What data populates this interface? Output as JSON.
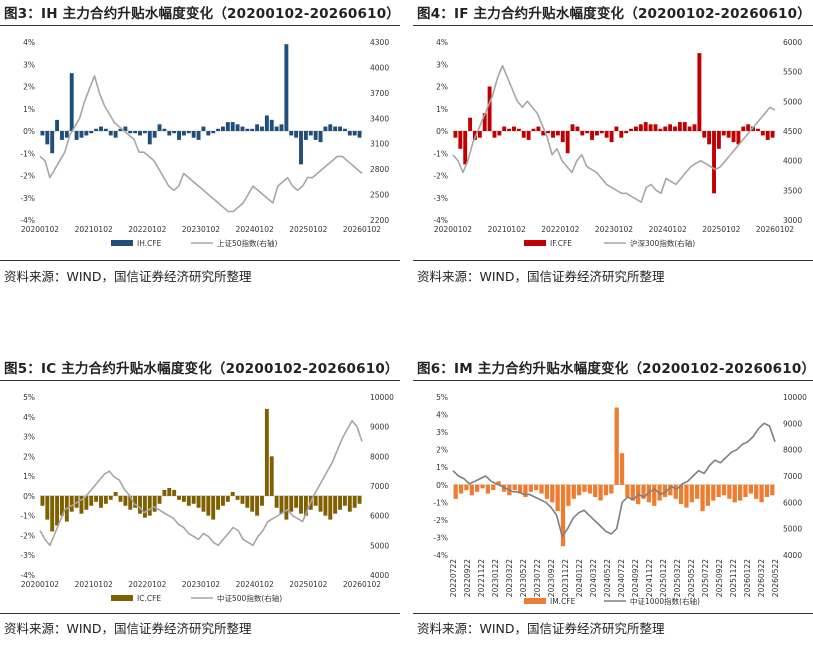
{
  "panels": [
    {
      "title": "图3：IH 主力合约升贴水幅度变化（20200102-20260610）",
      "source": "资料来源：WIND，国信证券经济研究所整理",
      "chart_data": {
        "type": "bar",
        "x_ticks": [
          "20200102",
          "20210102",
          "20220102",
          "20230102",
          "20240102",
          "20250102",
          "20260102"
        ],
        "y_left_ticks": [
          "4%",
          "3%",
          "2%",
          "1%",
          "0%",
          "-1%",
          "-2%",
          "-3%",
          "-4%"
        ],
        "y_left_range": [
          -4,
          4
        ],
        "y_right_ticks": [
          "4300",
          "4000",
          "3700",
          "3400",
          "3100",
          "2800",
          "2500",
          "2200"
        ],
        "y_right_range": [
          2200,
          4300
        ],
        "series": [
          {
            "name": "IH.CFE",
            "kind": "bar",
            "axis": "left",
            "color": "#1f4e79",
            "values": [
              -0.2,
              -0.6,
              -1.0,
              0.5,
              -0.4,
              -0.3,
              2.6,
              -0.4,
              -0.3,
              -0.2,
              -0.1,
              0.1,
              0.2,
              0.1,
              -0.2,
              -0.3,
              0.1,
              0.2,
              -0.1,
              -0.1,
              -0.2,
              -0.1,
              -0.6,
              -0.3,
              0.3,
              0.1,
              -0.2,
              -0.1,
              -0.4,
              -0.2,
              -0.1,
              -0.3,
              -0.4,
              0.2,
              -0.2,
              -0.1,
              0.1,
              0.2,
              0.4,
              0.4,
              0.3,
              0.2,
              0.1,
              0.1,
              0.3,
              0.2,
              0.7,
              0.5,
              0.2,
              0.3,
              3.9,
              -0.2,
              -0.3,
              -1.5,
              -0.4,
              -0.2,
              -0.4,
              -0.5,
              0.2,
              0.3,
              0.2,
              0.2,
              0.1,
              -0.2,
              -0.2,
              -0.3
            ]
          },
          {
            "name": "上证50指数(右轴)",
            "kind": "line",
            "axis": "right",
            "color": "#a6a6a6",
            "values": [
              2950,
              2900,
              2700,
              2800,
              2900,
              3000,
              3200,
              3300,
              3400,
              3600,
              3750,
              3900,
              3700,
              3550,
              3450,
              3350,
              3300,
              3250,
              3200,
              3150,
              3000,
              3000,
              2950,
              2900,
              2800,
              2700,
              2600,
              2550,
              2600,
              2750,
              2700,
              2650,
              2600,
              2550,
              2500,
              2450,
              2400,
              2350,
              2300,
              2300,
              2350,
              2400,
              2500,
              2600,
              2550,
              2500,
              2450,
              2400,
              2600,
              2650,
              2700,
              2600,
              2550,
              2600,
              2700,
              2700,
              2750,
              2800,
              2850,
              2900,
              2950,
              2950,
              2900,
              2850,
              2800,
              2750
            ]
          }
        ]
      }
    },
    {
      "title": "图4：IF 主力合约升贴水幅度变化（20200102-20260610）",
      "source": "资料来源：WIND，国信证券经济研究所整理",
      "chart_data": {
        "type": "bar",
        "x_ticks": [
          "20200102",
          "20210102",
          "20220102",
          "20230102",
          "20240102",
          "20250102",
          "20260102"
        ],
        "y_left_ticks": [
          "4%",
          "3%",
          "2%",
          "1%",
          "0%",
          "-1%",
          "-2%",
          "-3%",
          "-4%"
        ],
        "y_left_range": [
          -4,
          4
        ],
        "y_right_ticks": [
          "6000",
          "5500",
          "5000",
          "4500",
          "4000",
          "3500",
          "3000"
        ],
        "y_right_range": [
          3000,
          6000
        ],
        "series": [
          {
            "name": "IF.CFE",
            "kind": "bar",
            "axis": "left",
            "color": "#c00000",
            "values": [
              -0.3,
              -0.8,
              -1.5,
              0.6,
              -0.4,
              -0.3,
              0.8,
              2.0,
              -0.3,
              -0.2,
              0.2,
              0.1,
              0.2,
              0.1,
              -0.3,
              -0.4,
              0.1,
              0.2,
              -0.2,
              -0.1,
              -0.3,
              -0.2,
              -0.5,
              -1.0,
              0.3,
              0.2,
              -0.2,
              -0.1,
              -0.4,
              -0.2,
              -0.1,
              -0.3,
              -0.5,
              0.2,
              -0.3,
              -0.1,
              0.1,
              0.2,
              0.3,
              0.4,
              0.3,
              0.3,
              0.1,
              0.2,
              0.3,
              0.2,
              0.4,
              0.4,
              0.2,
              0.3,
              3.5,
              -0.3,
              -0.6,
              -2.8,
              -0.8,
              -0.2,
              -0.3,
              -0.5,
              -0.6,
              0.2,
              0.3,
              0.2,
              0.1,
              -0.2,
              -0.4,
              -0.3
            ]
          },
          {
            "name": "沪深300指数(右轴)",
            "kind": "line",
            "axis": "right",
            "color": "#a6a6a6",
            "values": [
              4100,
              4000,
              3800,
              4000,
              4300,
              4500,
              4700,
              4900,
              5100,
              5400,
              5600,
              5400,
              5200,
              5000,
              4900,
              5000,
              4900,
              4800,
              4600,
              4400,
              4100,
              4200,
              4000,
              3900,
              3800,
              4000,
              4100,
              3900,
              3850,
              3800,
              3700,
              3600,
              3550,
              3500,
              3450,
              3450,
              3400,
              3350,
              3300,
              3550,
              3600,
              3500,
              3450,
              3700,
              3650,
              3600,
              3700,
              3800,
              3900,
              3950,
              4000,
              3950,
              3900,
              3850,
              3900,
              4000,
              4100,
              4200,
              4300,
              4400,
              4500,
              4600,
              4700,
              4800,
              4900,
              4850
            ]
          }
        ]
      }
    },
    {
      "title": "图5：IC 主力合约升贴水幅度变化（20200102-20260610）",
      "source": "资料来源：WIND，国信证券经济研究所整理",
      "chart_data": {
        "type": "bar",
        "x_ticks": [
          "20200102",
          "20210102",
          "20220102",
          "20230102",
          "20240102",
          "20250102",
          "20260102"
        ],
        "y_left_ticks": [
          "5%",
          "4%",
          "3%",
          "2%",
          "1%",
          "0%",
          "-1%",
          "-2%",
          "-3%",
          "-4%"
        ],
        "y_left_range": [
          -4,
          5
        ],
        "y_right_ticks": [
          "10000",
          "9000",
          "8000",
          "7000",
          "6000",
          "5000",
          "4000"
        ],
        "y_right_range": [
          4000,
          10000
        ],
        "series": [
          {
            "name": "IC.CFE",
            "kind": "bar",
            "axis": "left",
            "color": "#7f6000",
            "values": [
              -0.5,
              -1.2,
              -1.8,
              -1.5,
              -1.0,
              -1.3,
              -0.8,
              -0.6,
              -0.9,
              -0.7,
              -0.5,
              -0.3,
              -0.6,
              -0.4,
              -0.2,
              0.2,
              -0.3,
              -0.5,
              -0.7,
              -0.6,
              -0.9,
              -1.1,
              -1.0,
              -0.8,
              -0.4,
              0.3,
              0.4,
              0.3,
              -0.2,
              -0.3,
              -0.5,
              -0.4,
              -0.6,
              -0.8,
              -1.0,
              -1.2,
              -0.7,
              -0.5,
              -0.3,
              0.2,
              -0.2,
              -0.4,
              -0.6,
              -0.8,
              -1.0,
              -0.5,
              4.4,
              2.0,
              -0.6,
              -0.9,
              -1.2,
              -0.8,
              -0.6,
              -0.9,
              -1.0,
              -0.7,
              -0.5,
              -0.8,
              -1.0,
              -1.2,
              -0.9,
              -0.7,
              -0.5,
              -0.8,
              -0.6,
              -0.4
            ]
          },
          {
            "name": "中证500指数(右轴)",
            "kind": "line",
            "axis": "right",
            "color": "#a6a6a6",
            "values": [
              5500,
              5200,
              5000,
              5400,
              5800,
              6200,
              6300,
              6400,
              6500,
              6600,
              6800,
              7000,
              7200,
              7400,
              7500,
              7300,
              7200,
              6900,
              6700,
              6400,
              6300,
              6100,
              6200,
              6300,
              6200,
              6100,
              6000,
              5900,
              5700,
              5600,
              5400,
              5300,
              5200,
              5400,
              5300,
              5100,
              5000,
              5200,
              5400,
              5600,
              5500,
              5200,
              5100,
              5000,
              5300,
              5500,
              5800,
              5900,
              6000,
              6100,
              6200,
              6000,
              5900,
              5800,
              6200,
              6600,
              6900,
              7200,
              7500,
              7800,
              8200,
              8600,
              8900,
              9200,
              9000,
              8500
            ]
          }
        ]
      }
    },
    {
      "title": "图6：IM 主力合约升贴水幅度变化（20200102-20260610）",
      "source": "资料来源：WIND，国信证券经济研究所整理",
      "chart_data": {
        "type": "bar",
        "x_ticks": [
          "20220722",
          "20220922",
          "20221122",
          "20230122",
          "20230322",
          "20230522",
          "20230722",
          "20230922",
          "20231122",
          "20240122",
          "20240322",
          "20240522",
          "20240722",
          "20240922",
          "20241122",
          "20250122",
          "20250322",
          "20250522",
          "20250722",
          "20250922",
          "20251122",
          "20260122",
          "20260322",
          "20260522"
        ],
        "y_left_ticks": [
          "5%",
          "4%",
          "3%",
          "2%",
          "1%",
          "0%",
          "-1%",
          "-2%",
          "-3%",
          "-4%"
        ],
        "y_left_range": [
          -4,
          5
        ],
        "y_right_ticks": [
          "10000",
          "9000",
          "8000",
          "7000",
          "6000",
          "5000",
          "4000"
        ],
        "y_right_range": [
          4000,
          10000
        ],
        "series": [
          {
            "name": "IM.CFE",
            "kind": "bar",
            "axis": "left",
            "color": "#ed7d31",
            "values": [
              -0.8,
              -0.5,
              -0.3,
              -0.6,
              -0.4,
              -0.2,
              -0.5,
              -0.3,
              0.2,
              -0.4,
              -0.6,
              -0.3,
              -0.5,
              -0.7,
              -0.4,
              -0.3,
              -0.5,
              -0.8,
              -1.0,
              -1.5,
              -3.5,
              -1.2,
              -0.8,
              -0.6,
              -0.4,
              -0.5,
              -0.7,
              -0.9,
              -0.6,
              -0.5,
              4.4,
              1.8,
              -0.7,
              -0.9,
              -1.1,
              -0.8,
              -1.0,
              -1.2,
              -0.9,
              -0.7,
              -0.6,
              -0.8,
              -1.1,
              -1.3,
              -1.0,
              -0.8,
              -1.5,
              -1.2,
              -0.9,
              -0.7,
              -0.6,
              -0.8,
              -1.0,
              -0.9,
              -0.7,
              -0.5,
              -0.8,
              -1.0,
              -0.7,
              -0.6
            ]
          },
          {
            "name": "中证1000指数(右轴)",
            "kind": "line",
            "axis": "right",
            "color": "#7f7f7f",
            "values": [
              7200,
              7000,
              6900,
              6700,
              6800,
              6900,
              7000,
              6800,
              6700,
              6600,
              6500,
              6400,
              6400,
              6300,
              6300,
              6200,
              6100,
              6000,
              5800,
              5500,
              4700,
              5000,
              5400,
              5600,
              5700,
              5500,
              5300,
              5100,
              4900,
              4800,
              5000,
              6000,
              6200,
              6100,
              6300,
              6200,
              6400,
              6500,
              6300,
              6400,
              6600,
              6500,
              6700,
              6800,
              7000,
              7200,
              7100,
              7400,
              7600,
              7500,
              7700,
              7900,
              8000,
              8200,
              8300,
              8500,
              8800,
              9000,
              8900,
              8300
            ]
          }
        ]
      }
    }
  ]
}
